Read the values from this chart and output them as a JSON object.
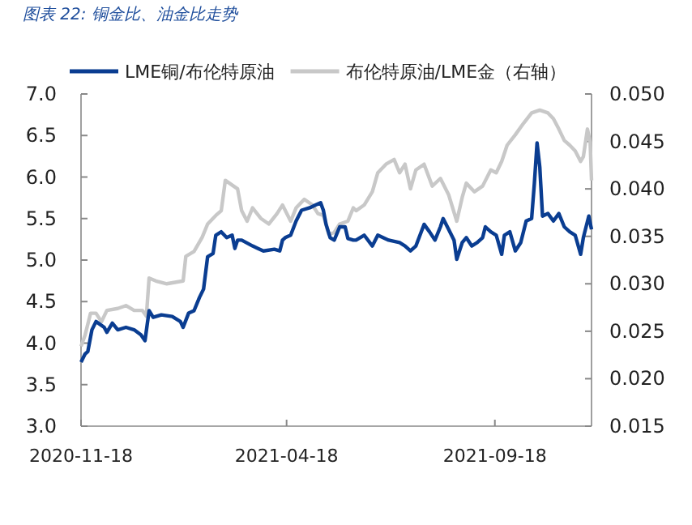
{
  "chart_data": {
    "type": "line",
    "title": "图表 22: 铜金比、油金比走势",
    "legend": "top",
    "xlim": [
      "2020-11-18",
      "2021-11-28"
    ],
    "xticks": [
      "2020-11-18",
      "2021-04-18",
      "2021-09-18"
    ],
    "ylim": [
      3,
      7
    ],
    "yticks": [
      {
        "value": 3,
        "label": "3.0"
      },
      {
        "value": 3.5,
        "label": "3.5"
      },
      {
        "value": 4,
        "label": "4.0"
      },
      {
        "value": 4.5,
        "label": "4.5"
      },
      {
        "value": 5,
        "label": "5.0"
      },
      {
        "value": 5.5,
        "label": "5.5"
      },
      {
        "value": 6,
        "label": "6.0"
      },
      {
        "value": 6.5,
        "label": "6.5"
      },
      {
        "value": 7,
        "label": "7.0"
      }
    ],
    "y2lim": [
      0.015,
      0.05
    ],
    "y2ticks": [
      {
        "value": 0.015,
        "label": "0.015"
      },
      {
        "value": 0.02,
        "label": "0.020"
      },
      {
        "value": 0.025,
        "label": "0.025"
      },
      {
        "value": 0.03,
        "label": "0.030"
      },
      {
        "value": 0.035,
        "label": "0.035"
      },
      {
        "value": 0.04,
        "label": "0.040"
      },
      {
        "value": 0.045,
        "label": "0.045"
      },
      {
        "value": 0.05,
        "label": "0.050"
      }
    ],
    "series": [
      {
        "name": "LME铜/布伦特原油",
        "color": "#0a3d91",
        "x": [
          "2020-11-18",
          "2020-11-21",
          "2020-11-23",
          "2020-11-26",
          "2020-11-29",
          "2020-12-05",
          "2020-12-07",
          "2020-12-11",
          "2020-12-15",
          "2020-12-21",
          "2020-12-27",
          "2021-01-01",
          "2021-01-04",
          "2021-01-07",
          "2021-01-10",
          "2021-01-16",
          "2021-01-24",
          "2021-01-30",
          "2021-02-01",
          "2021-02-05",
          "2021-02-09",
          "2021-02-13",
          "2021-02-16",
          "2021-02-17",
          "2021-02-19",
          "2021-02-23",
          "2021-02-25",
          "2021-03-01",
          "2021-03-05",
          "2021-03-09",
          "2021-03-11",
          "2021-03-13",
          "2021-03-16",
          "2021-03-24",
          "2021-03-28",
          "2021-04-01",
          "2021-04-09",
          "2021-04-13",
          "2021-04-15",
          "2021-04-17",
          "2021-04-21",
          "2021-04-25",
          "2021-04-29",
          "2021-05-05",
          "2021-05-09",
          "2021-05-13",
          "2021-05-15",
          "2021-05-17",
          "2021-05-20",
          "2021-05-23",
          "2021-05-27",
          "2021-05-31",
          "2021-06-02",
          "2021-06-06",
          "2021-06-08",
          "2021-06-14",
          "2021-06-20",
          "2021-06-24",
          "2021-07-02",
          "2021-07-10",
          "2021-07-14",
          "2021-07-18",
          "2021-07-22",
          "2021-07-28",
          "2021-08-01",
          "2021-08-05",
          "2021-08-09",
          "2021-08-11",
          "2021-08-15",
          "2021-08-19",
          "2021-08-21",
          "2021-08-25",
          "2021-08-28",
          "2021-09-01",
          "2021-09-05",
          "2021-09-09",
          "2021-09-11",
          "2021-09-15",
          "2021-09-19",
          "2021-09-23",
          "2021-09-25",
          "2021-09-29",
          "2021-10-03",
          "2021-10-07",
          "2021-10-11",
          "2021-10-15",
          "2021-10-17",
          "2021-10-19",
          "2021-10-21",
          "2021-10-23",
          "2021-10-27",
          "2021-10-31",
          "2021-11-04",
          "2021-11-08",
          "2021-11-12",
          "2021-11-16",
          "2021-11-20",
          "2021-11-22",
          "2021-11-26",
          "2021-11-28"
        ],
        "values": [
          3.77,
          3.87,
          3.9,
          4.16,
          4.26,
          4.19,
          4.13,
          4.24,
          4.16,
          4.19,
          4.16,
          4.1,
          4.03,
          4.39,
          4.31,
          4.34,
          4.32,
          4.26,
          4.19,
          4.36,
          4.39,
          4.55,
          4.65,
          4.78,
          5.04,
          5.08,
          5.3,
          5.34,
          5.27,
          5.3,
          5.14,
          5.24,
          5.24,
          5.17,
          5.14,
          5.11,
          5.13,
          5.11,
          5.24,
          5.27,
          5.3,
          5.47,
          5.6,
          5.63,
          5.66,
          5.69,
          5.6,
          5.43,
          5.27,
          5.24,
          5.4,
          5.4,
          5.26,
          5.24,
          5.24,
          5.3,
          5.17,
          5.3,
          5.24,
          5.21,
          5.17,
          5.11,
          5.17,
          5.43,
          5.34,
          5.24,
          5.4,
          5.5,
          5.37,
          5.24,
          5.01,
          5.21,
          5.27,
          5.17,
          5.21,
          5.27,
          5.4,
          5.34,
          5.3,
          5.07,
          5.3,
          5.34,
          5.11,
          5.21,
          5.47,
          5.5,
          5.92,
          6.41,
          6.12,
          5.53,
          5.56,
          5.47,
          5.56,
          5.4,
          5.34,
          5.3,
          5.07,
          5.27,
          5.53,
          5.37
        ]
      },
      {
        "name": "布伦特原油/LME金（右轴）",
        "color": "#c8c8c8",
        "axis": "y2",
        "x": [
          "2020-11-18",
          "2020-11-21",
          "2020-11-25",
          "2020-11-29",
          "2020-12-03",
          "2020-12-07",
          "2020-12-15",
          "2020-12-21",
          "2020-12-27",
          "2021-01-02",
          "2021-01-05",
          "2021-01-07",
          "2021-01-12",
          "2021-01-20",
          "2021-02-01",
          "2021-02-03",
          "2021-02-09",
          "2021-02-15",
          "2021-02-19",
          "2021-02-25",
          "2021-03-01",
          "2021-03-04",
          "2021-03-07",
          "2021-03-13",
          "2021-03-16",
          "2021-03-20",
          "2021-03-24",
          "2021-03-30",
          "2021-04-05",
          "2021-04-11",
          "2021-04-15",
          "2021-04-21",
          "2021-04-25",
          "2021-05-01",
          "2021-05-07",
          "2021-05-11",
          "2021-05-15",
          "2021-05-19",
          "2021-05-23",
          "2021-05-27",
          "2021-06-02",
          "2021-06-06",
          "2021-06-08",
          "2021-06-14",
          "2021-06-20",
          "2021-06-24",
          "2021-06-30",
          "2021-07-06",
          "2021-07-10",
          "2021-07-14",
          "2021-07-18",
          "2021-07-22",
          "2021-07-28",
          "2021-08-03",
          "2021-08-09",
          "2021-08-15",
          "2021-08-21",
          "2021-08-25",
          "2021-08-28",
          "2021-09-03",
          "2021-09-09",
          "2021-09-15",
          "2021-09-19",
          "2021-09-23",
          "2021-09-27",
          "2021-10-03",
          "2021-10-09",
          "2021-10-15",
          "2021-10-21",
          "2021-10-27",
          "2021-10-31",
          "2021-11-04",
          "2021-11-08",
          "2021-11-12",
          "2021-11-16",
          "2021-11-20",
          "2021-11-22",
          "2021-11-25",
          "2021-11-27",
          "2021-11-28"
        ],
        "values": [
          0.0234,
          0.0246,
          0.0269,
          0.0269,
          0.026,
          0.0272,
          0.0274,
          0.0277,
          0.0272,
          0.0272,
          0.0266,
          0.0306,
          0.0303,
          0.03,
          0.0303,
          0.0329,
          0.0334,
          0.0349,
          0.0363,
          0.0372,
          0.0377,
          0.0409,
          0.0406,
          0.04,
          0.0377,
          0.0366,
          0.038,
          0.0369,
          0.0363,
          0.0374,
          0.0383,
          0.0366,
          0.038,
          0.0389,
          0.0383,
          0.0374,
          0.0372,
          0.0352,
          0.0354,
          0.0363,
          0.0366,
          0.038,
          0.0377,
          0.0383,
          0.0397,
          0.0417,
          0.0426,
          0.0431,
          0.0417,
          0.0426,
          0.04,
          0.042,
          0.0426,
          0.0403,
          0.0411,
          0.0394,
          0.0366,
          0.0391,
          0.0406,
          0.0397,
          0.0403,
          0.042,
          0.0417,
          0.0429,
          0.0446,
          0.0457,
          0.0469,
          0.048,
          0.0483,
          0.048,
          0.0474,
          0.0463,
          0.0451,
          0.0446,
          0.044,
          0.0429,
          0.0434,
          0.0463,
          0.0449,
          0.0409
        ]
      }
    ]
  }
}
